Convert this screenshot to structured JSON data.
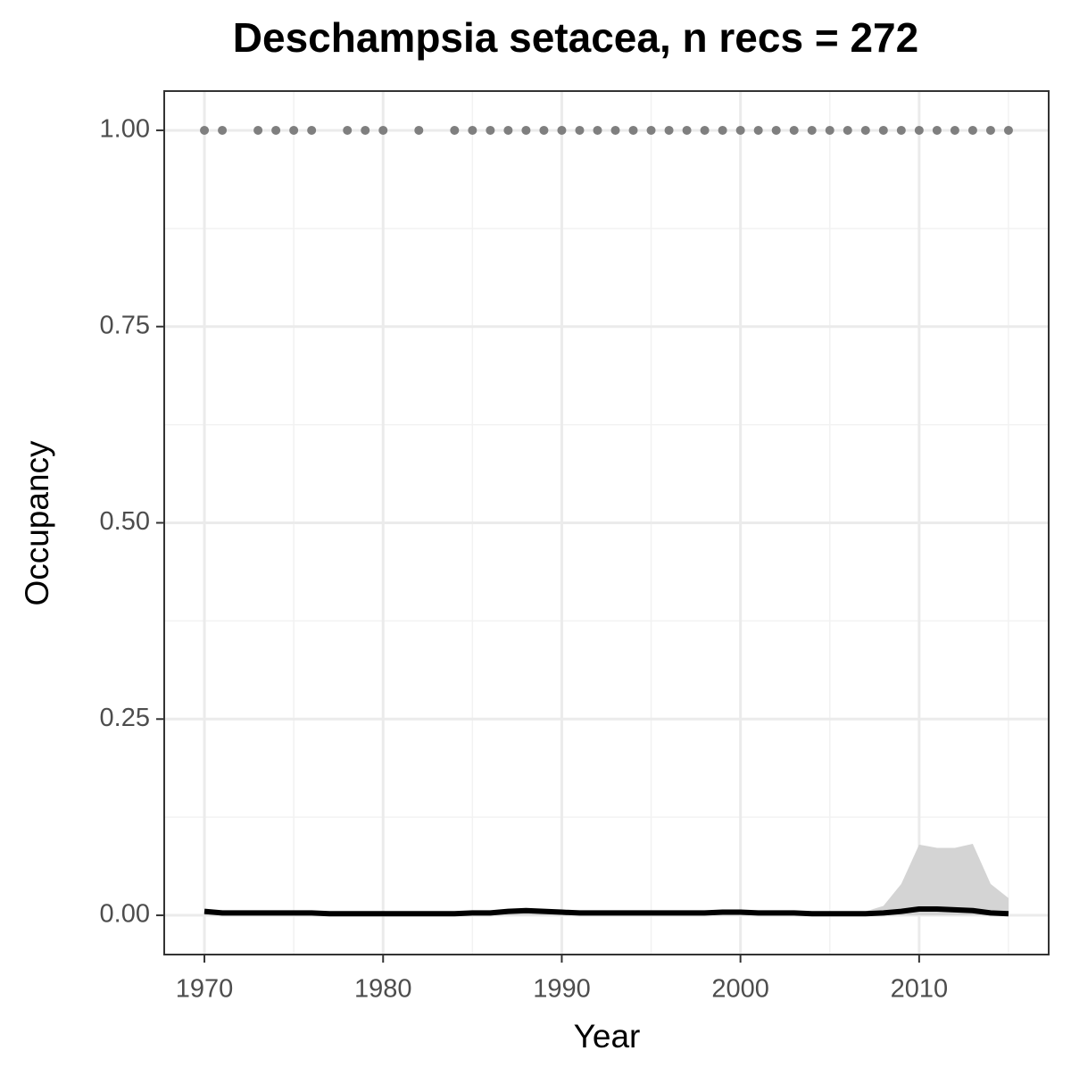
{
  "chart_data": {
    "type": "line",
    "title": "Deschampsia setacea, n recs = 272",
    "x_label": "Year",
    "y_label": "Occupancy",
    "xlim": [
      1967.75,
      2017.25
    ],
    "ylim": [
      -0.05,
      1.05
    ],
    "xticks": [
      1970,
      1980,
      1990,
      2000,
      2010
    ],
    "yticks": [
      {
        "value": 0,
        "label": "0.00"
      },
      0.25,
      {
        "value": 0.5,
        "label": "0.50"
      },
      0.75,
      {
        "value": 1,
        "label": "1.00"
      }
    ],
    "x_minor_ticks": [
      1975,
      1985,
      1995,
      2005,
      2015
    ],
    "y_minor_ticks": [
      0.125,
      0.375,
      0.625,
      0.875
    ],
    "grid": true,
    "x": [
      1970,
      1971,
      1972,
      1973,
      1974,
      1975,
      1976,
      1977,
      1978,
      1979,
      1980,
      1981,
      1982,
      1983,
      1984,
      1985,
      1986,
      1987,
      1988,
      1989,
      1990,
      1991,
      1992,
      1993,
      1994,
      1995,
      1996,
      1997,
      1998,
      1999,
      2000,
      2001,
      2002,
      2003,
      2004,
      2005,
      2006,
      2007,
      2008,
      2009,
      2010,
      2011,
      2012,
      2013,
      2014,
      2015
    ],
    "series": [
      {
        "color": "#000000",
        "values": [
          0.005,
          0.003,
          0.003,
          0.003,
          0.003,
          0.003,
          0.003,
          0.002,
          0.002,
          0.002,
          0.002,
          0.002,
          0.002,
          0.002,
          0.002,
          0.003,
          0.003,
          0.005,
          0.006,
          0.005,
          0.004,
          0.003,
          0.003,
          0.003,
          0.003,
          0.003,
          0.003,
          0.003,
          0.003,
          0.004,
          0.004,
          0.003,
          0.003,
          0.003,
          0.002,
          0.002,
          0.002,
          0.002,
          0.003,
          0.005,
          0.008,
          0.008,
          0.007,
          0.006,
          0.003,
          0.002
        ]
      }
    ],
    "band": {
      "color": "#d4d4d4",
      "lower": [
        0,
        0,
        0,
        0,
        0,
        0,
        0,
        0,
        0,
        0,
        0,
        0,
        0,
        0,
        0,
        0,
        0,
        0,
        0,
        0,
        0,
        0,
        0,
        0,
        0,
        0,
        0,
        0,
        0,
        0,
        0,
        0,
        0,
        0,
        0,
        0,
        0,
        0,
        0,
        0,
        0,
        0,
        0,
        0,
        0,
        0
      ],
      "upper": [
        0.008,
        0.006,
        0.006,
        0.006,
        0.006,
        0.006,
        0.006,
        0.005,
        0.005,
        0.005,
        0.005,
        0.005,
        0.005,
        0.005,
        0.005,
        0.006,
        0.006,
        0.008,
        0.009,
        0.008,
        0.007,
        0.006,
        0.006,
        0.006,
        0.006,
        0.006,
        0.006,
        0.006,
        0.006,
        0.007,
        0.007,
        0.006,
        0.006,
        0.006,
        0.005,
        0.005,
        0.005,
        0.005,
        0.012,
        0.04,
        0.09,
        0.086,
        0.086,
        0.091,
        0.04,
        0.022
      ]
    },
    "points": {
      "color": "#7f7f7f",
      "x": [
        1970,
        1971,
        1973,
        1974,
        1975,
        1976,
        1978,
        1979,
        1980,
        1982,
        1984,
        1985,
        1986,
        1987,
        1988,
        1989,
        1990,
        1991,
        1992,
        1993,
        1994,
        1995,
        1996,
        1997,
        1998,
        1999,
        2000,
        2001,
        2002,
        2003,
        2004,
        2005,
        2006,
        2007,
        2008,
        2009,
        2010,
        2011,
        2012,
        2013,
        2014,
        2015
      ],
      "values": [
        1,
        1,
        1,
        1,
        1,
        1,
        1,
        1,
        1,
        1,
        1,
        1,
        1,
        1,
        1,
        1,
        1,
        1,
        1,
        1,
        1,
        1,
        1,
        1,
        1,
        1,
        1,
        1,
        1,
        1,
        1,
        1,
        1,
        1,
        1,
        1,
        1,
        1,
        1,
        1,
        1,
        1
      ]
    }
  }
}
